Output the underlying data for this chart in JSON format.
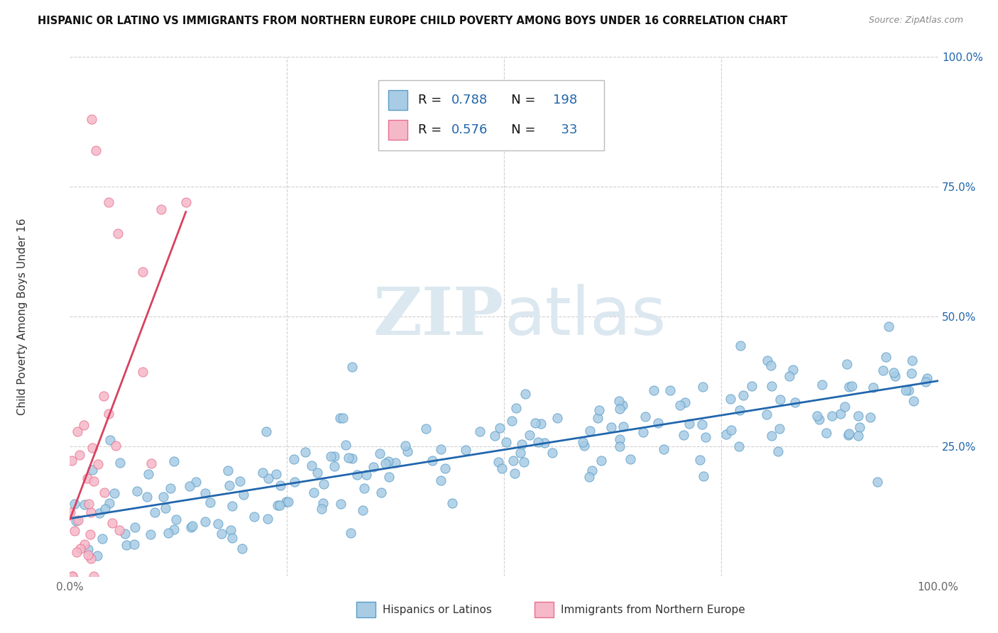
{
  "title": "HISPANIC OR LATINO VS IMMIGRANTS FROM NORTHERN EUROPE CHILD POVERTY AMONG BOYS UNDER 16 CORRELATION CHART",
  "source": "Source: ZipAtlas.com",
  "ylabel": "Child Poverty Among Boys Under 16",
  "xlim": [
    0,
    1.0
  ],
  "ylim": [
    0,
    1.0
  ],
  "blue_R": 0.788,
  "blue_N": 198,
  "pink_R": 0.576,
  "pink_N": 33,
  "blue_color": "#a8cce4",
  "pink_color": "#f5b8c8",
  "blue_edge_color": "#5b9dc9",
  "pink_edge_color": "#e87090",
  "blue_line_color": "#2166ac",
  "pink_line_color": "#d9415f",
  "legend_label_blue": "Hispanics or Latinos",
  "legend_label_pink": "Immigrants from Northern Europe",
  "watermark_zip": "ZIP",
  "watermark_atlas": "atlas",
  "background_color": "#ffffff",
  "grid_color": "#d0d0d0",
  "title_color": "#111111",
  "source_color": "#888888",
  "value_color": "#2166ac",
  "seed_blue": 42,
  "seed_pink": 7
}
